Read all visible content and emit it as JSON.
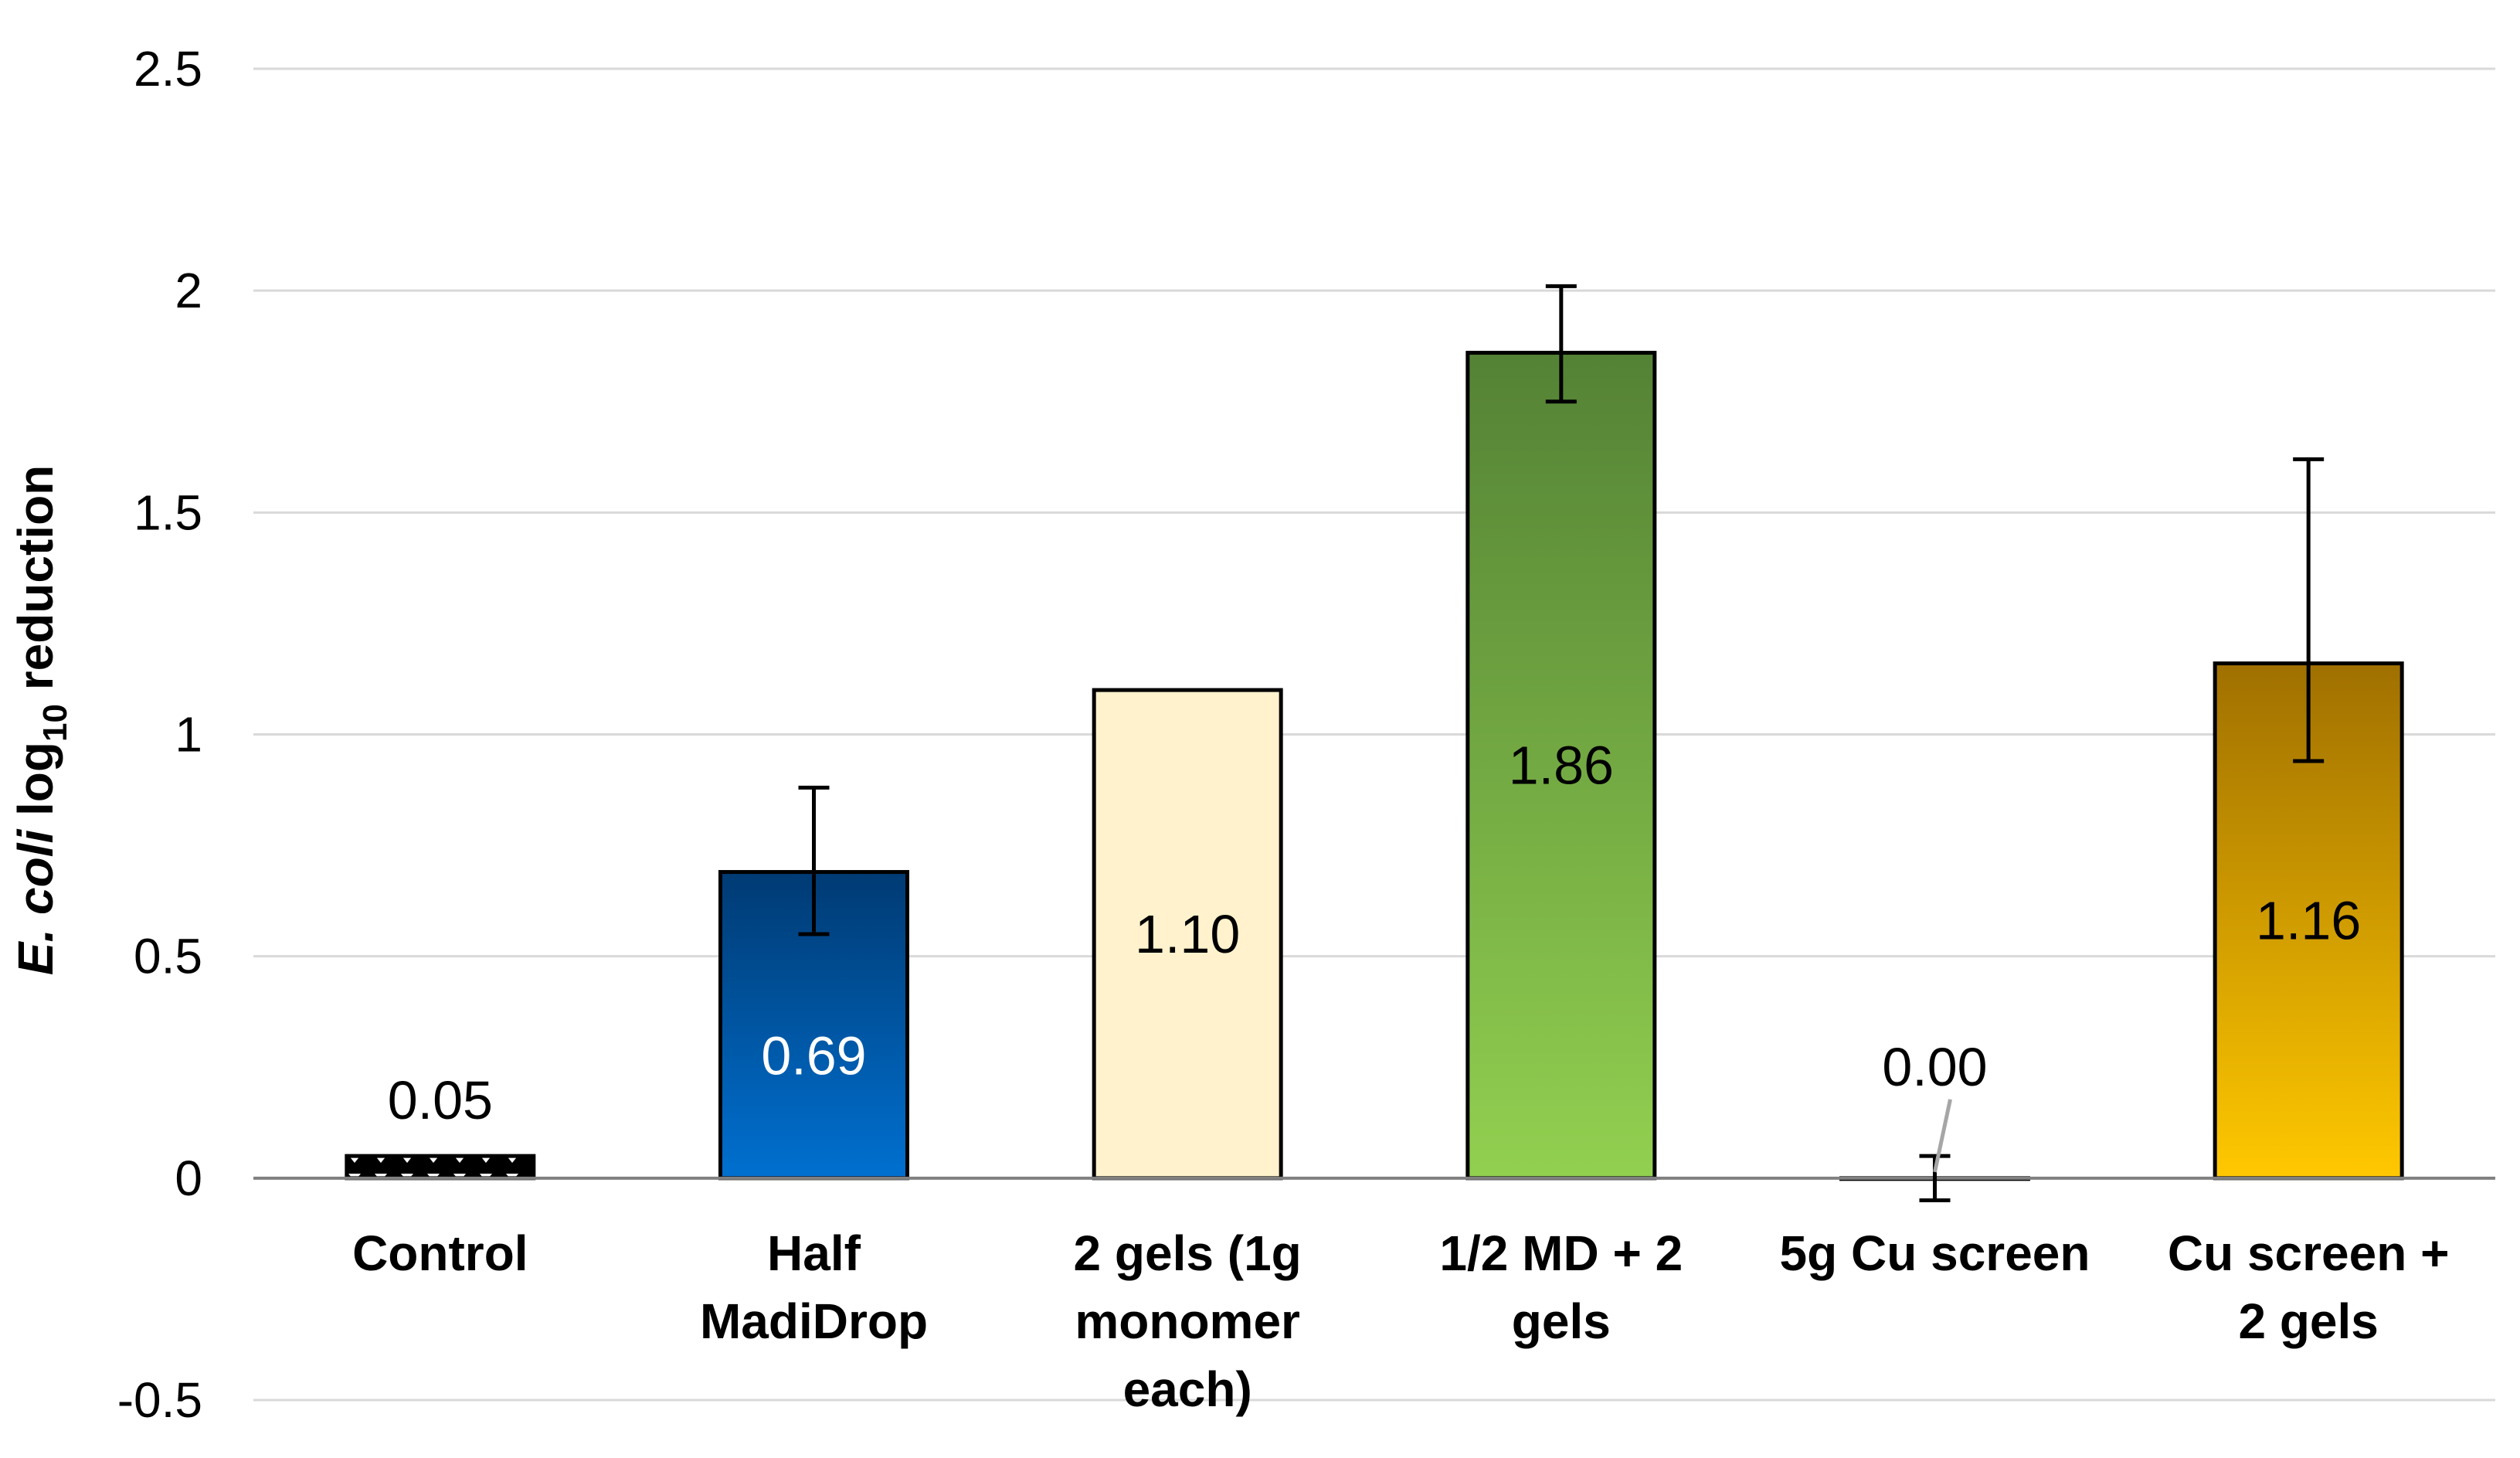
{
  "chart_data": {
    "type": "bar",
    "title": "",
    "xlabel": "",
    "ylabel": {
      "prefix": "E. coli",
      "main": " log",
      "subscript": "10",
      "suffix": " reduction"
    },
    "ylim": [
      -0.5,
      2.5
    ],
    "yticks": [
      -0.5,
      0,
      0.5,
      1,
      1.5,
      2,
      2.5
    ],
    "ytick_labels": [
      "-0.5",
      "0",
      "0.5",
      "1",
      "1.5",
      "2",
      "2.5"
    ],
    "grid": true,
    "legend": "none",
    "categories": [
      [
        "Control"
      ],
      [
        "Half",
        "MadiDrop"
      ],
      [
        "2 gels (1g",
        "monomer",
        "each)"
      ],
      [
        "1/2 MD + 2",
        "gels"
      ],
      [
        "5g Cu screen"
      ],
      [
        "Cu screen +",
        "2 gels"
      ]
    ],
    "values": [
      0.05,
      0.69,
      1.1,
      1.86,
      0.0,
      1.16
    ],
    "error_low": [
      null,
      0.55,
      null,
      1.75,
      -0.05,
      0.94
    ],
    "error_high": [
      null,
      0.88,
      null,
      2.01,
      0.05,
      1.62
    ],
    "data_labels": [
      "0.05",
      "0.69",
      "1.10",
      "1.86",
      "0.00",
      "1.16"
    ],
    "label_positions": [
      "above",
      "inside",
      "inside",
      "inside",
      "above",
      "inside"
    ],
    "label_colors": [
      "#000000",
      "#ffffff",
      "#000000",
      "#000000",
      "#000000",
      "#000000"
    ],
    "bar_styles": [
      {
        "pattern": "triangles",
        "fill": "#000000",
        "dot": "#ffffff"
      },
      {
        "gradient": [
          "#003a73",
          "#0070d0"
        ]
      },
      {
        "fill": "#fff2cc"
      },
      {
        "gradient": [
          "#548235",
          "#92d050"
        ]
      },
      {
        "fill": "#ffffff"
      },
      {
        "gradient": [
          "#a07000",
          "#ffc800"
        ]
      }
    ],
    "colors": {
      "grid": "#d9d9d9",
      "axis": "#808080",
      "bar_outline": "#000000",
      "leader_line": "#a6a6a6"
    }
  }
}
